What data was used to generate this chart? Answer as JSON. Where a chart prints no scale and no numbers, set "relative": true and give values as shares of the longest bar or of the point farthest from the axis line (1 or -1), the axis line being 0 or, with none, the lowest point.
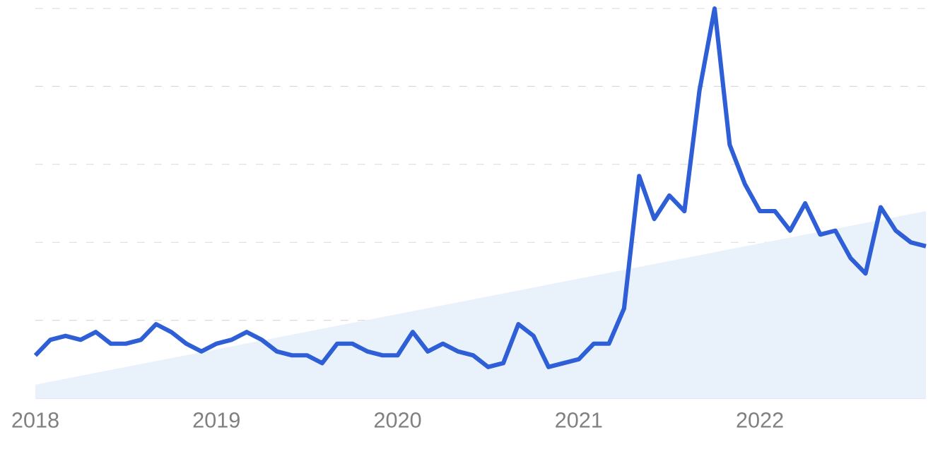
{
  "chart_data": {
    "type": "line",
    "relative": true,
    "grid": "y",
    "x": [
      "2018-01",
      "2018-02",
      "2018-03",
      "2018-04",
      "2018-05",
      "2018-06",
      "2018-07",
      "2018-08",
      "2018-09",
      "2018-10",
      "2018-11",
      "2018-12",
      "2019-01",
      "2019-02",
      "2019-03",
      "2019-04",
      "2019-05",
      "2019-06",
      "2019-07",
      "2019-08",
      "2019-09",
      "2019-10",
      "2019-11",
      "2019-12",
      "2020-01",
      "2020-02",
      "2020-03",
      "2020-04",
      "2020-05",
      "2020-06",
      "2020-07",
      "2020-08",
      "2020-09",
      "2020-10",
      "2020-11",
      "2020-12",
      "2021-01",
      "2021-02",
      "2021-03",
      "2021-04",
      "2021-05",
      "2021-06",
      "2021-07",
      "2021-08",
      "2021-09",
      "2021-10",
      "2021-11",
      "2021-12",
      "2022-01",
      "2022-02",
      "2022-03",
      "2022-04",
      "2022-05",
      "2022-06",
      "2022-07",
      "2022-08",
      "2022-09",
      "2022-10",
      "2022-11",
      "2022-12"
    ],
    "xlim": [
      "2018-01",
      "2022-12"
    ],
    "xticks": [
      "2018",
      "2019",
      "2020",
      "2021",
      "2022"
    ],
    "series": [
      {
        "type": "area",
        "color": "#e9f1fb",
        "x": [
          "2018-01",
          "2022-12"
        ],
        "values": [
          0.035,
          0.48
        ]
      },
      {
        "color": "#2f5fd6",
        "values": [
          0.11,
          0.15,
          0.16,
          0.15,
          0.17,
          0.14,
          0.14,
          0.15,
          0.19,
          0.17,
          0.14,
          0.12,
          0.14,
          0.15,
          0.17,
          0.15,
          0.12,
          0.11,
          0.11,
          0.09,
          0.14,
          0.14,
          0.12,
          0.11,
          0.11,
          0.17,
          0.12,
          0.14,
          0.12,
          0.11,
          0.08,
          0.09,
          0.19,
          0.16,
          0.08,
          0.09,
          0.1,
          0.14,
          0.14,
          0.23,
          0.57,
          0.46,
          0.52,
          0.48,
          0.79,
          1,
          0.65,
          0.55,
          0.48,
          0.48,
          0.43,
          0.5,
          0.42,
          0.43,
          0.36,
          0.32,
          0.49,
          0.43,
          0.4,
          0.39
        ]
      }
    ]
  }
}
